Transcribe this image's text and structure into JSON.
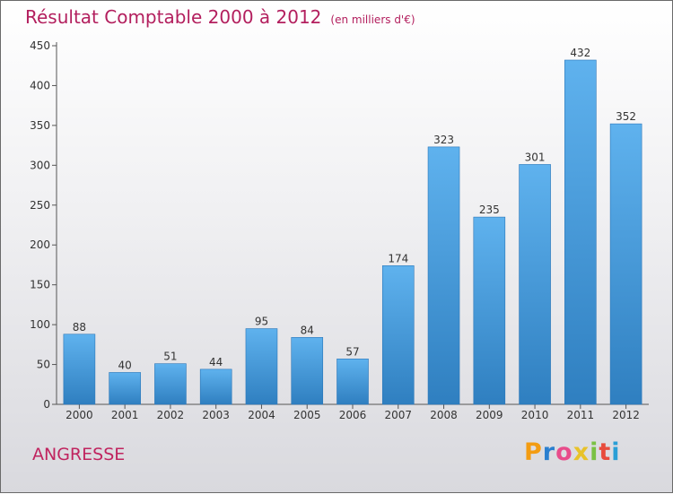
{
  "chart_data": {
    "type": "bar",
    "title": "Résultat Comptable 2000 à 2012",
    "subtitle": "(en milliers d'€)",
    "categories": [
      "2000",
      "2001",
      "2002",
      "2003",
      "2004",
      "2005",
      "2006",
      "2007",
      "2008",
      "2009",
      "2010",
      "2011",
      "2012"
    ],
    "values": [
      88,
      40,
      51,
      44,
      95,
      84,
      57,
      174,
      323,
      235,
      301,
      432,
      352
    ],
    "ylim": [
      0,
      450
    ],
    "yticks": [
      0,
      50,
      100,
      150,
      200,
      250,
      300,
      350,
      400,
      450
    ],
    "grid": false,
    "bar_color": "#4a9ee0",
    "bar_color_light": "#5fb2ee",
    "bar_color_dark": "#2f7fc0"
  },
  "commune": "ANGRESSE",
  "brand": {
    "letters": [
      "P",
      "r",
      "o",
      "x",
      "i",
      "t",
      "i"
    ],
    "colors": [
      "#f39c12",
      "#2a7fcf",
      "#e84c8b",
      "#e8c22a",
      "#7ac143",
      "#e84c3d",
      "#2a9fd6"
    ]
  }
}
